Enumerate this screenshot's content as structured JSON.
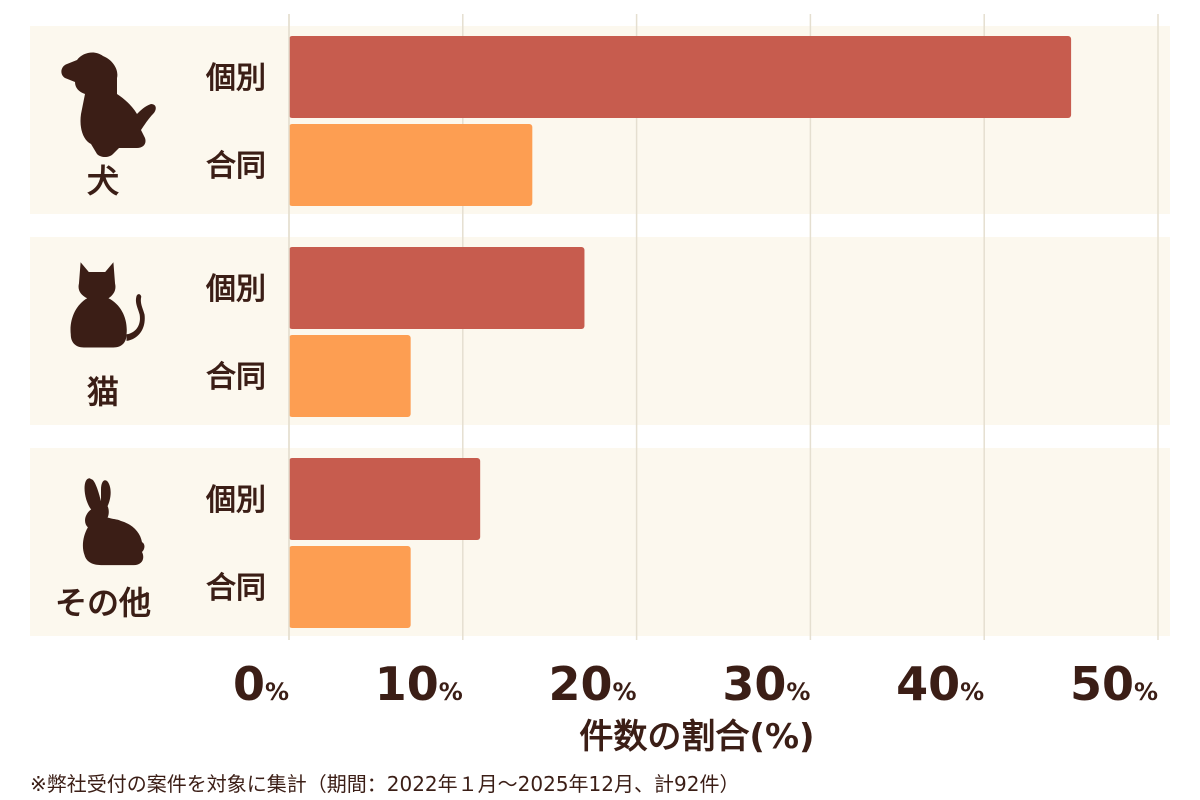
{
  "chart_data": {
    "type": "bar",
    "orientation": "horizontal",
    "groups": [
      {
        "label": "犬",
        "icon": "dog-icon",
        "bars": [
          {
            "label": "個別",
            "value": 45
          },
          {
            "label": "合同",
            "value": 14
          }
        ]
      },
      {
        "label": "猫",
        "icon": "cat-icon",
        "bars": [
          {
            "label": "個別",
            "value": 17
          },
          {
            "label": "合同",
            "value": 7
          }
        ]
      },
      {
        "label": "その他",
        "icon": "rabbit-icon",
        "bars": [
          {
            "label": "個別",
            "value": 11
          },
          {
            "label": "合同",
            "value": 7
          }
        ]
      }
    ],
    "xlim": [
      0,
      50
    ],
    "xticks": [
      0,
      10,
      20,
      30,
      40,
      50
    ],
    "tick_suffix": "%",
    "xlabel": "件数の割合(%)",
    "grid": true,
    "colors": {
      "個別": "#c75c4e",
      "合同": "#fd9e52",
      "band": "#fcf8ee",
      "grid": "#e5dfd0",
      "text": "#3b1e16"
    }
  },
  "footnote": "※弊社受付の案件を対象に集計（期間：2022年１月〜2025年12月、計92件）"
}
